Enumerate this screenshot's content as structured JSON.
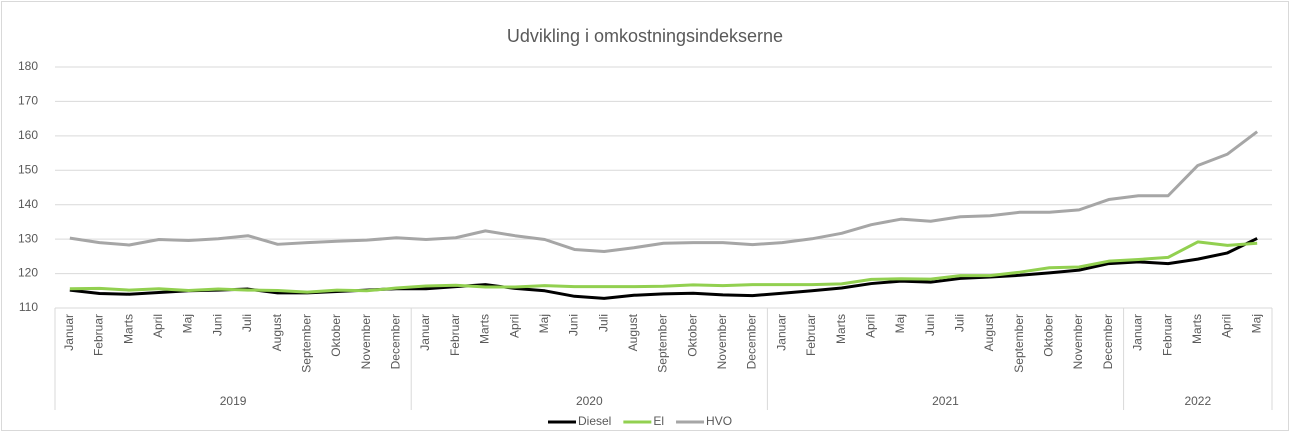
{
  "chart_data": {
    "type": "line",
    "title": "Udvikling i omkostningsindekserne",
    "groups": [
      {
        "name": "2019",
        "categories": [
          "Januar",
          "Februar",
          "Marts",
          "April",
          "Maj",
          "Juni",
          "Juli",
          "August",
          "September",
          "Oktober",
          "November",
          "December"
        ]
      },
      {
        "name": "2020",
        "categories": [
          "Januar",
          "Februar",
          "Marts",
          "April",
          "Maj",
          "Juni",
          "Juli",
          "August",
          "September",
          "Oktober",
          "November",
          "December"
        ]
      },
      {
        "name": "2021",
        "categories": [
          "Januar",
          "Februar",
          "Marts",
          "April",
          "Maj",
          "Juni",
          "Juli",
          "August",
          "September",
          "Oktober",
          "November",
          "December"
        ]
      },
      {
        "name": "2022",
        "categories": [
          "Januar",
          "Februar",
          "Marts",
          "April",
          "Maj"
        ]
      }
    ],
    "series": [
      {
        "name": "Diesel",
        "color": "#000000",
        "values": [
          115.2,
          114.2,
          114,
          114.5,
          115,
          115.2,
          115.5,
          114.4,
          114.4,
          114.8,
          115.2,
          115.6,
          115.6,
          116.2,
          116.8,
          115.7,
          115,
          113.4,
          112.8,
          113.7,
          114.1,
          114.3,
          113.8,
          113.6,
          114.3,
          115,
          115.8,
          117.1,
          117.8,
          117.5,
          118.6,
          119,
          119.5,
          120.2,
          121,
          122.9,
          123.4,
          122.9,
          124.2,
          126,
          130.2
        ]
      },
      {
        "name": "El",
        "color": "#92d050",
        "values": [
          115.6,
          115.7,
          115.2,
          115.6,
          115.1,
          115.5,
          115.2,
          115.1,
          114.6,
          115.2,
          115,
          115.8,
          116.4,
          116.6,
          116.1,
          116.1,
          116.5,
          116.2,
          116.2,
          116.2,
          116.3,
          116.7,
          116.5,
          116.8,
          116.8,
          116.8,
          117,
          118.3,
          118.5,
          118.4,
          119.4,
          119.4,
          120.4,
          121.7,
          121.9,
          123.6,
          124.1,
          124.7,
          129.2,
          128.2,
          128.8
        ]
      },
      {
        "name": "HVO",
        "color": "#a6a6a6",
        "values": [
          130.3,
          129,
          128.3,
          129.9,
          129.6,
          130.1,
          131,
          128.5,
          129,
          129.4,
          129.7,
          130.4,
          129.9,
          130.4,
          132.4,
          131,
          129.9,
          127,
          126.4,
          127.5,
          128.8,
          129,
          129,
          128.4,
          129,
          130.1,
          131.7,
          134.2,
          135.8,
          135.2,
          136.5,
          136.8,
          137.8,
          137.8,
          138.5,
          141.5,
          142.6,
          142.6,
          151.4,
          154.7,
          161.2
        ]
      }
    ],
    "ylim": [
      110,
      180
    ],
    "yticks": [
      110,
      120,
      130,
      140,
      150,
      160,
      170,
      180
    ],
    "grid": true,
    "legend": "bottom"
  }
}
